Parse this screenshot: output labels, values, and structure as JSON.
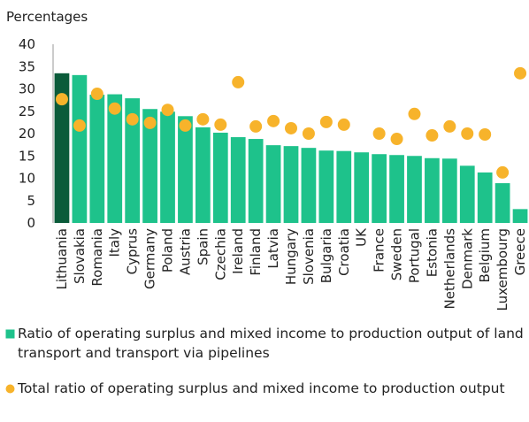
{
  "chart_data": {
    "type": "bar",
    "ylabel": "Percentages",
    "categories": [
      "Lithuania",
      "Slovakia",
      "Romania",
      "Italy",
      "Cyprus",
      "Germany",
      "Poland",
      "Austria",
      "Spain",
      "Czechia",
      "Ireland",
      "Finland",
      "Latvia",
      "Hungary",
      "Slovenia",
      "Bulgaria",
      "Croatia",
      "UK",
      "France",
      "Sweden",
      "Portugal",
      "Estonia",
      "Netherlands",
      "Denmark",
      "Belgium",
      "Luxembourg",
      "Greece"
    ],
    "series": [
      {
        "name": "Ratio of operating surplus and mixed income to production output of land transport and transport via pipelines",
        "type": "bar",
        "color": "#1ec28b",
        "colors": [
          "#0b5b3a",
          "#1ec28b",
          "#1ec28b",
          "#1ec28b",
          "#1ec28b",
          "#1ec28b",
          "#1ec28b",
          "#1ec28b",
          "#1ec28b",
          "#1ec28b",
          "#1ec28b",
          "#1ec28b",
          "#1ec28b",
          "#1ec28b",
          "#1ec28b",
          "#1ec28b",
          "#1ec28b",
          "#1ec28b",
          "#1ec28b",
          "#1ec28b",
          "#1ec28b",
          "#1ec28b",
          "#1ec28b",
          "#1ec28b",
          "#1ec28b",
          "#1ec28b",
          "#1ec28b"
        ],
        "values": [
          33.5,
          33.1,
          28.7,
          28.8,
          27.9,
          25.5,
          24.9,
          23.9,
          21.4,
          20.2,
          19.2,
          18.8,
          17.4,
          17.2,
          16.8,
          16.2,
          16.1,
          15.8,
          15.4,
          15.2,
          15.0,
          14.5,
          14.4,
          12.8,
          11.3,
          8.9,
          3.1
        ]
      },
      {
        "name": "Total ratio of operating surplus and mixed income to production output",
        "type": "scatter",
        "color": "#f7b32b",
        "values": [
          27.7,
          21.8,
          28.9,
          25.6,
          23.2,
          22.4,
          25.3,
          21.8,
          23.2,
          22.0,
          31.5,
          21.6,
          22.8,
          21.2,
          20.0,
          22.6,
          22.0,
          null,
          20.0,
          18.8,
          24.4,
          19.6,
          21.6,
          20.0,
          19.8,
          11.3,
          33.5
        ]
      }
    ],
    "ylim": [
      0,
      40
    ],
    "yticks": [
      0,
      5,
      10,
      15,
      20,
      25,
      30,
      35,
      40
    ],
    "grid": false
  }
}
